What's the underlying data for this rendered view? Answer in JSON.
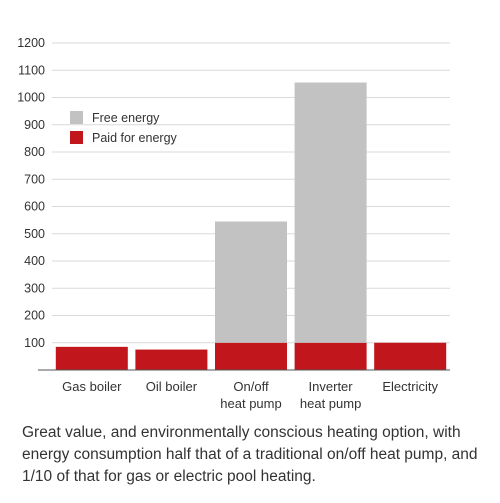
{
  "chart_data": {
    "type": "bar",
    "stacked": true,
    "categories": [
      [
        "Gas boiler"
      ],
      [
        "Oil boiler"
      ],
      [
        "On/off",
        "heat pump"
      ],
      [
        "Inverter",
        "heat pump"
      ],
      [
        "Electricity"
      ]
    ],
    "series": [
      {
        "name": "Paid for energy",
        "color": "#c0161c",
        "values": [
          85,
          75,
          100,
          100,
          100
        ]
      },
      {
        "name": "Free energy",
        "color": "#c2c2c2",
        "values": [
          0,
          0,
          445,
          955,
          0
        ]
      }
    ],
    "yticks": [
      100,
      200,
      300,
      400,
      500,
      600,
      700,
      800,
      900,
      1000,
      1100,
      1200
    ],
    "ylim": [
      0,
      1200
    ],
    "grid": true,
    "legend": "top-left",
    "legend_order": [
      "Free energy",
      "Paid for energy"
    ]
  },
  "caption": "Great value, and environmentally conscious heating option, with energy consumption half that of a traditional on/off heat pump, and 1/10 of that for gas or electric pool heating.",
  "colors": {
    "grid": "#d9d9d9",
    "axis": "#555555"
  }
}
